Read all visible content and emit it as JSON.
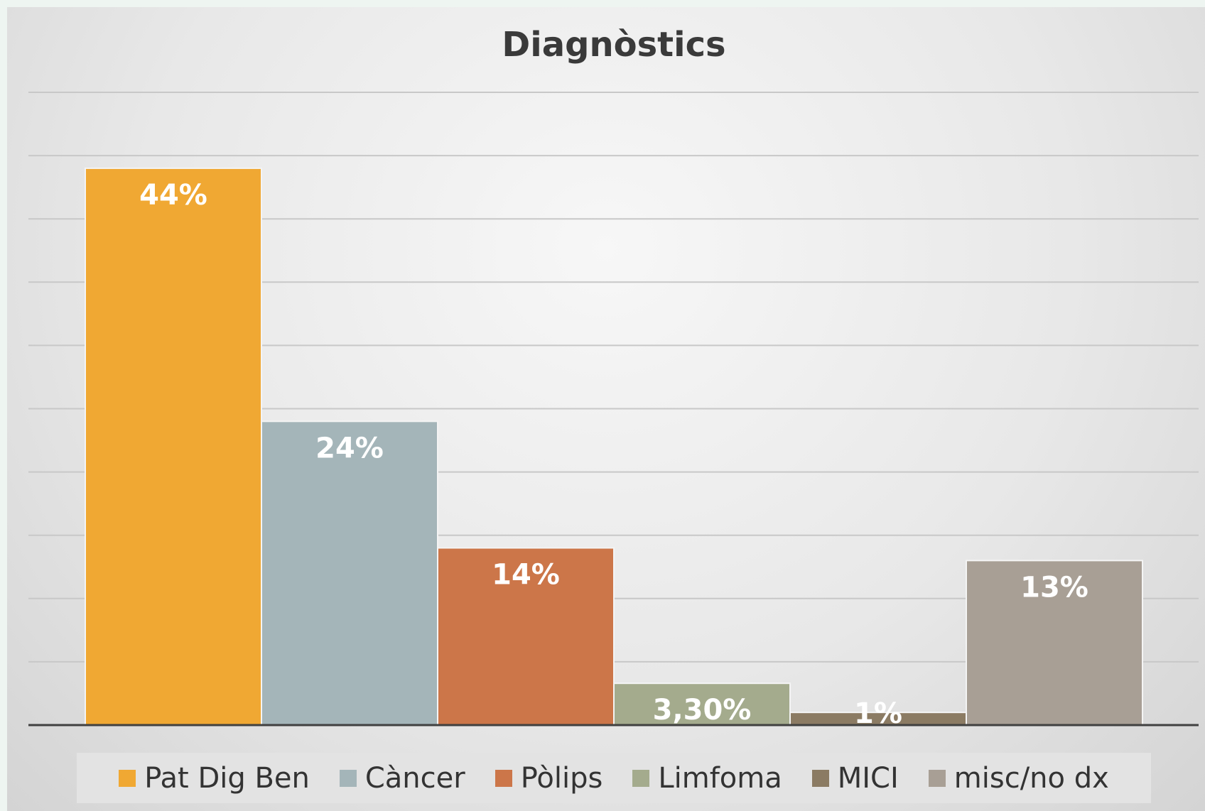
{
  "chart_data": {
    "type": "bar",
    "title": "Diagnòstics",
    "categories": [
      null
    ],
    "series": [
      {
        "name": "Pat Dig Ben",
        "color": "#f0a833",
        "values": [
          44
        ],
        "value_labels": [
          "44%"
        ]
      },
      {
        "name": "Càncer",
        "color": "#a4b5b9",
        "values": [
          24
        ],
        "value_labels": [
          "24%"
        ]
      },
      {
        "name": "Pòlips",
        "color": "#cc7649",
        "values": [
          14
        ],
        "value_labels": [
          "14%"
        ]
      },
      {
        "name": "Limfoma",
        "color": "#a4ab8d",
        "values": [
          3.3
        ],
        "value_labels": [
          "3,30%"
        ]
      },
      {
        "name": "MICI",
        "color": "#8b7b63",
        "values": [
          1
        ],
        "value_labels": [
          "1%"
        ]
      },
      {
        "name": "misc/no dx",
        "color": "#a89f95",
        "values": [
          13
        ],
        "value_labels": [
          "13%"
        ]
      }
    ],
    "ylim": [
      0,
      50
    ],
    "yticks": [
      0,
      5,
      10,
      15,
      20,
      25,
      30,
      35,
      40,
      45,
      50
    ],
    "grid": true,
    "legend": "bottom"
  }
}
